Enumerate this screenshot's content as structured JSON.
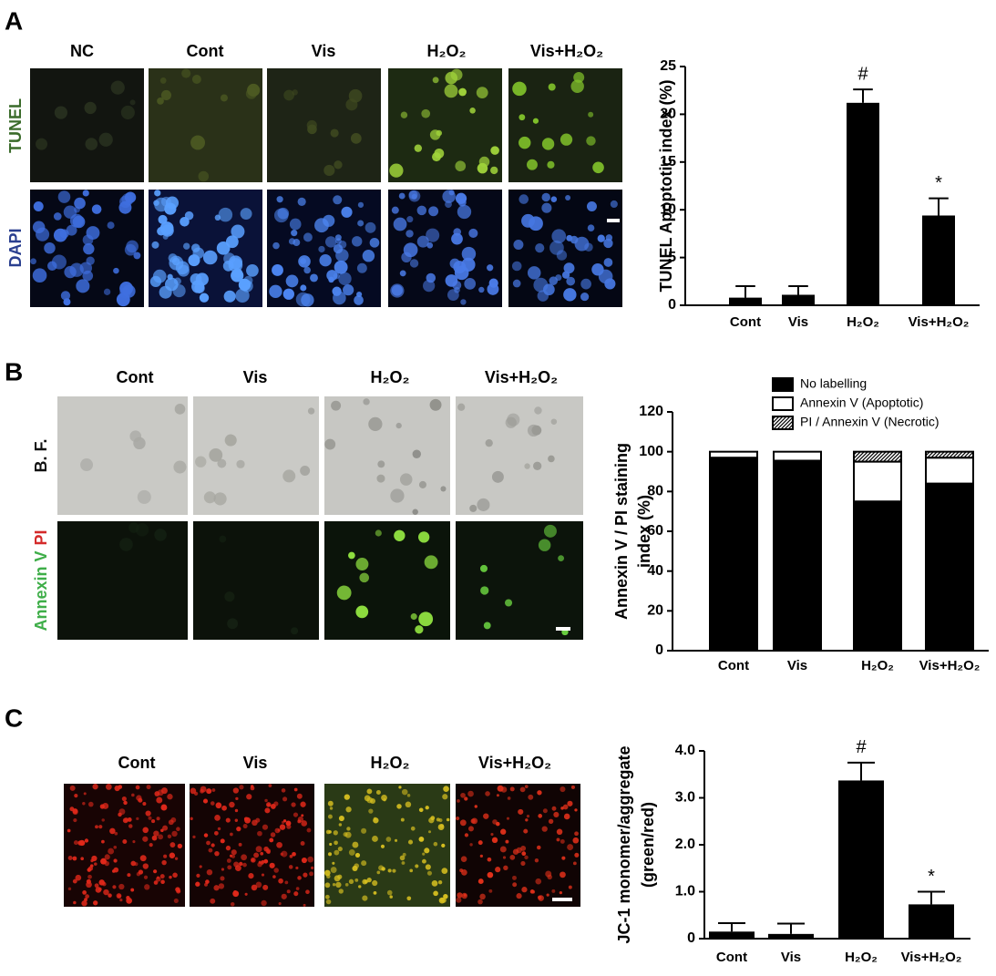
{
  "panels": [
    {
      "label": "A",
      "columns": [
        "NC",
        "Cont",
        "Vis",
        "H₂O₂",
        "Vis+H₂O₂"
      ],
      "rows": [
        "TUNEL",
        "DAPI"
      ]
    },
    {
      "label": "B",
      "columns": [
        "Cont",
        "Vis",
        "H₂O₂",
        "Vis+H₂O₂"
      ],
      "rows": [
        "B. F.",
        "Annexin V",
        "PI"
      ]
    },
    {
      "label": "C",
      "columns": [
        "Cont",
        "Vis",
        "H₂O₂",
        "Vis+H₂O₂"
      ]
    }
  ],
  "chart_data": [
    {
      "type": "bar",
      "ylabel": "TUNEL Apoptotic index (%)",
      "categories": [
        "Cont",
        "Vis",
        "H₂O₂",
        "Vis+H₂O₂"
      ],
      "values": [
        0.8,
        1.1,
        21.2,
        9.4
      ],
      "errors": [
        1.2,
        0.9,
        1.4,
        1.8
      ],
      "annotations": [
        null,
        null,
        "#",
        "*"
      ],
      "color": "#000000",
      "ylim": [
        0,
        25
      ],
      "yticks": [
        0,
        5,
        10,
        15,
        20,
        25
      ]
    },
    {
      "type": "bar",
      "stacked": true,
      "ylabel": [
        "Annexin V / PI staining",
        "index (%)"
      ],
      "categories": [
        "Cont",
        "Vis",
        "H₂O₂",
        "Vis+H₂O₂"
      ],
      "series": [
        {
          "name": "No labelling",
          "color": "#000000",
          "values": [
            97,
            95.5,
            75,
            84
          ]
        },
        {
          "name": "Annexin V (Apoptotic)",
          "color": "#ffffff",
          "values": [
            3,
            4.5,
            20,
            13
          ]
        },
        {
          "name": "PI / Annexin V (Necrotic)",
          "color": "#000000",
          "hatch": true,
          "values": [
            0,
            0,
            5,
            3
          ]
        }
      ],
      "ylim": [
        0,
        120
      ],
      "yticks": [
        0,
        20,
        40,
        60,
        80,
        100,
        120
      ],
      "legend": "top-left"
    },
    {
      "type": "bar",
      "ylabel": [
        "JC-1 monomer/aggregate",
        "(green/red)"
      ],
      "categories": [
        "Cont",
        "Vis",
        "H₂O₂",
        "Vis+H₂O₂"
      ],
      "values": [
        0.15,
        0.1,
        3.37,
        0.73
      ],
      "errors": [
        0.18,
        0.22,
        0.38,
        0.27
      ],
      "annotations": [
        null,
        null,
        "#",
        "*"
      ],
      "color": "#000000",
      "ylim": [
        0,
        4
      ],
      "yticks": [
        0,
        {
          "value": 1,
          "label": "1.0"
        },
        {
          "value": 2,
          "label": "2.0"
        },
        {
          "value": 3,
          "label": "3.0"
        },
        {
          "value": 4,
          "label": "4.0"
        }
      ]
    }
  ]
}
